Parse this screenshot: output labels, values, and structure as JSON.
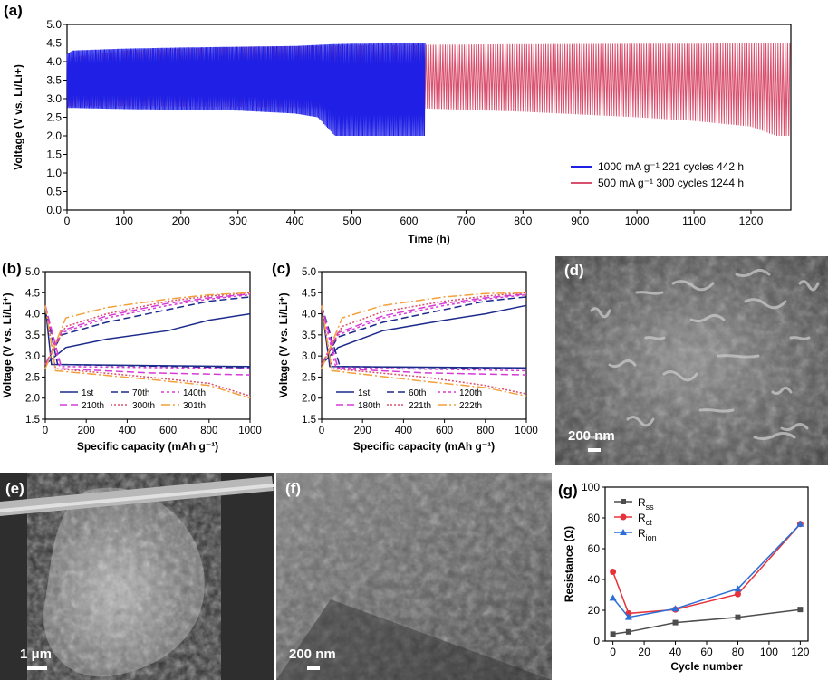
{
  "panels": {
    "a": "(a)",
    "b": "(b)",
    "c": "(c)",
    "d": "(d)",
    "e": "(e)",
    "f": "(f)",
    "g": "(g)"
  },
  "sem": {
    "d_scale": "200 nm",
    "e_scale": "1 μm",
    "f_scale": "200 nm"
  },
  "colors": {
    "blue": "#1f1fe6",
    "pink": "#d9506e",
    "navy": "#1c2a8c",
    "magenta": "#d63bd6",
    "orange": "#f2a03a",
    "gray": "#4d4d4d",
    "red": "#e8323a",
    "lightblue": "#2b6fd6"
  },
  "chart_data": [
    {
      "id": "a",
      "type": "line",
      "xlabel": "Time (h)",
      "ylabel": "Voltage (V vs. Li/Li+)",
      "xlim": [
        0,
        1270
      ],
      "ylim": [
        0.0,
        5.0
      ],
      "xticks": [
        "0",
        "100",
        "200",
        "300",
        "400",
        "500",
        "600",
        "700",
        "800",
        "900",
        "1000",
        "1100",
        "1200"
      ],
      "yticks": [
        "0.0",
        "0.5",
        "1.0",
        "1.5",
        "2.0",
        "2.5",
        "3.0",
        "3.5",
        "4.0",
        "4.5",
        "5.0"
      ],
      "legend_position": "bottom-right",
      "series": [
        {
          "name": "1000 mA g⁻¹ 221 cycles  442 h",
          "color": "blue",
          "x": [
            0,
            10,
            100,
            200,
            300,
            400,
            440,
            470,
            500,
            628
          ],
          "upper": [
            4.2,
            4.3,
            4.35,
            4.38,
            4.4,
            4.42,
            4.45,
            4.47,
            4.48,
            4.5
          ],
          "lower": [
            2.75,
            2.75,
            2.72,
            2.7,
            2.68,
            2.6,
            2.5,
            2.0,
            2.0,
            2.0
          ]
        },
        {
          "name": "500 mA g⁻¹   300 cycles  1244 h",
          "color": "pink",
          "x": [
            0,
            100,
            300,
            600,
            800,
            1000,
            1100,
            1200,
            1244,
            1270
          ],
          "upper": [
            4.1,
            4.3,
            4.4,
            4.45,
            4.47,
            4.48,
            4.48,
            4.5,
            4.5,
            4.5
          ],
          "lower": [
            2.8,
            2.8,
            2.78,
            2.75,
            2.65,
            2.5,
            2.4,
            2.25,
            2.0,
            2.0
          ]
        }
      ]
    },
    {
      "id": "b",
      "type": "line",
      "xlabel": "Specific capacity (mAh g⁻¹)",
      "ylabel": "Voltage (V vs. Li/Li⁺)",
      "xlim": [
        0,
        1000
      ],
      "ylim": [
        1.5,
        5.0
      ],
      "xticks": [
        "0",
        "200",
        "400",
        "600",
        "800",
        "1000"
      ],
      "yticks": [
        "1.5",
        "2.0",
        "2.5",
        "3.0",
        "3.5",
        "4.0",
        "4.5",
        "5.0"
      ],
      "legend": [
        "1st",
        "70th",
        "140th",
        "210th",
        "300th",
        "301th"
      ],
      "series": [
        {
          "name": "1st",
          "color": "navy",
          "dash": "",
          "charge": [
            [
              0,
              2.8
            ],
            [
              100,
              3.2
            ],
            [
              300,
              3.4
            ],
            [
              600,
              3.6
            ],
            [
              800,
              3.85
            ],
            [
              1000,
              4.0
            ]
          ],
          "discharge": [
            [
              0,
              4.2
            ],
            [
              30,
              2.8
            ],
            [
              1000,
              2.75
            ]
          ]
        },
        {
          "name": "70th",
          "color": "navy",
          "dash": "8,4",
          "charge": [
            [
              0,
              2.8
            ],
            [
              80,
              3.5
            ],
            [
              300,
              3.8
            ],
            [
              600,
              4.1
            ],
            [
              800,
              4.3
            ],
            [
              1000,
              4.4
            ]
          ],
          "discharge": [
            [
              0,
              4.2
            ],
            [
              60,
              2.8
            ],
            [
              1000,
              2.72
            ]
          ]
        },
        {
          "name": "140th",
          "color": "magenta",
          "dash": "3,3",
          "charge": [
            [
              0,
              2.8
            ],
            [
              80,
              3.55
            ],
            [
              300,
              3.9
            ],
            [
              600,
              4.2
            ],
            [
              800,
              4.35
            ],
            [
              1000,
              4.45
            ]
          ],
          "discharge": [
            [
              0,
              4.2
            ],
            [
              70,
              2.75
            ],
            [
              1000,
              2.7
            ]
          ]
        },
        {
          "name": "210th",
          "color": "magenta",
          "dash": "8,4",
          "charge": [
            [
              0,
              2.8
            ],
            [
              80,
              3.6
            ],
            [
              300,
              3.95
            ],
            [
              600,
              4.25
            ],
            [
              800,
              4.38
            ],
            [
              1000,
              4.47
            ]
          ],
          "discharge": [
            [
              0,
              4.2
            ],
            [
              80,
              2.7
            ],
            [
              500,
              2.6
            ],
            [
              1000,
              2.55
            ]
          ]
        },
        {
          "name": "300th",
          "color": "pink",
          "dash": "2,2",
          "charge": [
            [
              0,
              2.8
            ],
            [
              100,
              3.7
            ],
            [
              300,
              4.0
            ],
            [
              600,
              4.3
            ],
            [
              800,
              4.42
            ],
            [
              1000,
              4.5
            ]
          ],
          "discharge": [
            [
              0,
              4.2
            ],
            [
              50,
              2.7
            ],
            [
              500,
              2.5
            ],
            [
              800,
              2.35
            ],
            [
              1000,
              2.05
            ]
          ]
        },
        {
          "name": "301th",
          "color": "orange",
          "dash": "10,3,2,3",
          "charge": [
            [
              0,
              2.7
            ],
            [
              100,
              3.9
            ],
            [
              300,
              4.15
            ],
            [
              600,
              4.35
            ],
            [
              800,
              4.45
            ],
            [
              1000,
              4.5
            ]
          ],
          "discharge": [
            [
              0,
              4.2
            ],
            [
              50,
              2.65
            ],
            [
              500,
              2.45
            ],
            [
              800,
              2.3
            ],
            [
              1000,
              2.0
            ]
          ]
        }
      ]
    },
    {
      "id": "c",
      "type": "line",
      "xlabel": "Specific capacity (mAh g⁻¹)",
      "ylabel": "Voltage (V vs. Li/Li⁺)",
      "xlim": [
        0,
        1000
      ],
      "ylim": [
        1.5,
        5.0
      ],
      "xticks": [
        "0",
        "200",
        "400",
        "600",
        "800",
        "1000"
      ],
      "yticks": [
        "1.5",
        "2.0",
        "2.5",
        "3.0",
        "3.5",
        "4.0",
        "4.5",
        "5.0"
      ],
      "legend": [
        "1st",
        "60th",
        "120th",
        "180th",
        "221th",
        "222th"
      ],
      "series": [
        {
          "name": "1st",
          "color": "navy",
          "dash": "",
          "charge": [
            [
              0,
              2.8
            ],
            [
              80,
              3.2
            ],
            [
              300,
              3.6
            ],
            [
              600,
              3.85
            ],
            [
              800,
              4.0
            ],
            [
              1000,
              4.2
            ]
          ],
          "discharge": [
            [
              0,
              4.2
            ],
            [
              40,
              2.75
            ],
            [
              1000,
              2.72
            ]
          ]
        },
        {
          "name": "60th",
          "color": "navy",
          "dash": "8,4",
          "charge": [
            [
              0,
              2.8
            ],
            [
              80,
              3.45
            ],
            [
              300,
              3.8
            ],
            [
              600,
              4.1
            ],
            [
              800,
              4.3
            ],
            [
              1000,
              4.4
            ]
          ],
          "discharge": [
            [
              0,
              4.2
            ],
            [
              90,
              2.75
            ],
            [
              1000,
              2.7
            ]
          ]
        },
        {
          "name": "120th",
          "color": "magenta",
          "dash": "3,3",
          "charge": [
            [
              0,
              2.8
            ],
            [
              80,
              3.5
            ],
            [
              300,
              3.9
            ],
            [
              600,
              4.2
            ],
            [
              800,
              4.35
            ],
            [
              1000,
              4.45
            ]
          ],
          "discharge": [
            [
              0,
              4.2
            ],
            [
              70,
              2.72
            ],
            [
              1000,
              2.65
            ]
          ]
        },
        {
          "name": "180th",
          "color": "magenta",
          "dash": "8,4",
          "charge": [
            [
              0,
              2.8
            ],
            [
              80,
              3.55
            ],
            [
              300,
              3.95
            ],
            [
              600,
              4.25
            ],
            [
              800,
              4.38
            ],
            [
              1000,
              4.47
            ]
          ],
          "discharge": [
            [
              0,
              4.2
            ],
            [
              80,
              2.7
            ],
            [
              500,
              2.6
            ],
            [
              1000,
              2.55
            ]
          ]
        },
        {
          "name": "221th",
          "color": "pink",
          "dash": "2,2",
          "charge": [
            [
              0,
              2.8
            ],
            [
              100,
              3.7
            ],
            [
              300,
              4.05
            ],
            [
              600,
              4.3
            ],
            [
              800,
              4.42
            ],
            [
              1000,
              4.5
            ]
          ],
          "discharge": [
            [
              0,
              4.2
            ],
            [
              50,
              2.7
            ],
            [
              500,
              2.5
            ],
            [
              800,
              2.3
            ],
            [
              1000,
              2.1
            ]
          ]
        },
        {
          "name": "222th",
          "color": "orange",
          "dash": "10,3,2,3",
          "charge": [
            [
              0,
              2.7
            ],
            [
              100,
              3.9
            ],
            [
              300,
              4.2
            ],
            [
              600,
              4.4
            ],
            [
              800,
              4.48
            ],
            [
              1000,
              4.5
            ]
          ],
          "discharge": [
            [
              0,
              4.2
            ],
            [
              50,
              2.65
            ],
            [
              500,
              2.4
            ],
            [
              800,
              2.25
            ],
            [
              1000,
              2.05
            ]
          ]
        }
      ]
    },
    {
      "id": "g",
      "type": "line",
      "xlabel": "Cycle number",
      "ylabel": "Resistance (Ω)",
      "xlim": [
        -5,
        125
      ],
      "ylim": [
        0,
        100
      ],
      "xticks": [
        "0",
        "20",
        "40",
        "60",
        "80",
        "100",
        "120"
      ],
      "yticks": [
        "0",
        "20",
        "40",
        "60",
        "80",
        "100"
      ],
      "categories": [
        0,
        10,
        40,
        80,
        120
      ],
      "legend_position": "top-left",
      "series": [
        {
          "name": "R_ss",
          "label_main": "R",
          "label_sub": "ss",
          "color": "gray",
          "marker": "square",
          "values": [
            4.5,
            6,
            12,
            15.5,
            20.5
          ]
        },
        {
          "name": "R_ct",
          "label_main": "R",
          "label_sub": "ct",
          "color": "red",
          "marker": "circle",
          "values": [
            45,
            18,
            20.5,
            30.5,
            76
          ]
        },
        {
          "name": "R_ion",
          "label_main": "R",
          "label_sub": "ion",
          "color": "lightblue",
          "marker": "triangle",
          "values": [
            28,
            15.5,
            21,
            34,
            76
          ]
        }
      ]
    }
  ]
}
